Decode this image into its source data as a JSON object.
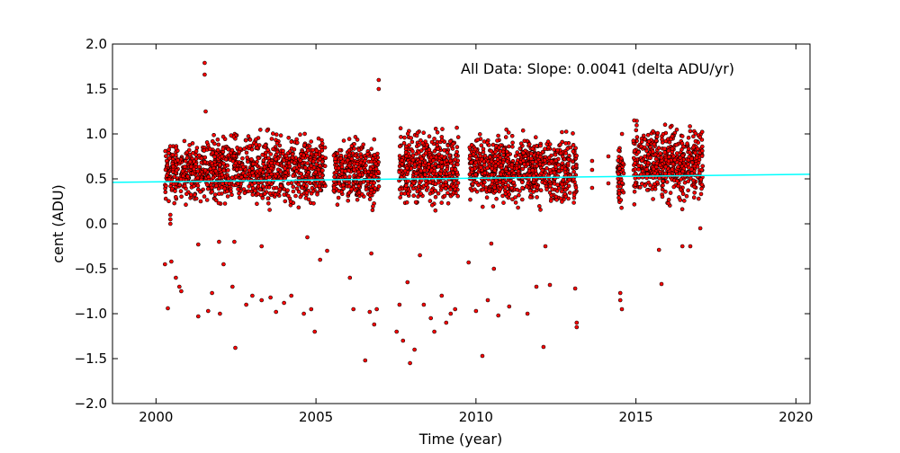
{
  "chart_data": {
    "type": "scatter",
    "title": "",
    "annotation": "All Data: Slope:  0.0041 (delta ADU/yr)",
    "xlabel": "Time (year)",
    "ylabel": "cent (ADU)",
    "xlim": [
      1998.64,
      2020.44
    ],
    "ylim": [
      -2.0,
      2.0
    ],
    "xticks": [
      2000,
      2005,
      2010,
      2015,
      2020
    ],
    "xtick_labels": [
      "2000",
      "2005",
      "2010",
      "2015",
      "2020"
    ],
    "yticks": [
      -2.0,
      -1.5,
      -1.0,
      -0.5,
      0.0,
      0.5,
      1.0,
      1.5,
      2.0
    ],
    "ytick_labels": [
      "−2.0",
      "−1.5",
      "−1.0",
      "−0.5",
      "0.0",
      "0.5",
      "1.0",
      "1.5",
      "2.0"
    ],
    "grid": false,
    "point_color": "#ff0000",
    "point_edge_color": "#000000",
    "fit_line": {
      "color": "#00ffff",
      "slope": 0.0041,
      "x": [
        1998.64,
        2020.44
      ],
      "y": [
        0.461,
        0.551
      ]
    },
    "dense_bands": [
      {
        "x_range": [
          2000.28,
          2001.5
        ],
        "y_range": [
          0.2,
          0.95
        ],
        "count": 260
      },
      {
        "x_range": [
          2001.5,
          2005.3
        ],
        "y_range": [
          0.15,
          1.05
        ],
        "count": 850
      },
      {
        "x_range": [
          2005.55,
          2006.98
        ],
        "y_range": [
          0.15,
          1.0
        ],
        "count": 330
      },
      {
        "x_range": [
          2007.6,
          2009.45
        ],
        "y_range": [
          0.15,
          1.1
        ],
        "count": 450
      },
      {
        "x_range": [
          2009.8,
          2013.15
        ],
        "y_range": [
          0.15,
          1.05
        ],
        "count": 760
      },
      {
        "x_range": [
          2014.42,
          2014.62
        ],
        "y_range": [
          0.1,
          1.0
        ],
        "count": 60
      },
      {
        "x_range": [
          2014.92,
          2017.1
        ],
        "y_range": [
          0.2,
          1.15
        ],
        "count": 520
      }
    ],
    "outliers": [
      [
        2000.28,
        -0.45
      ],
      [
        2000.37,
        -0.94
      ],
      [
        2000.48,
        -0.42
      ],
      [
        2000.62,
        -0.6
      ],
      [
        2000.73,
        -0.7
      ],
      [
        2000.79,
        -0.75
      ],
      [
        2001.32,
        -1.03
      ],
      [
        2001.63,
        -0.97
      ],
      [
        2001.75,
        -0.77
      ],
      [
        2002.0,
        -1.0
      ],
      [
        2002.11,
        -0.45
      ],
      [
        2002.39,
        -0.7
      ],
      [
        2002.48,
        -1.38
      ],
      [
        2002.82,
        -0.9
      ],
      [
        2003.01,
        -0.8
      ],
      [
        2003.3,
        -0.85
      ],
      [
        2003.58,
        -0.82
      ],
      [
        2003.75,
        -0.98
      ],
      [
        2004.0,
        -0.88
      ],
      [
        2004.23,
        -0.8
      ],
      [
        2004.62,
        -1.0
      ],
      [
        2004.85,
        -0.95
      ],
      [
        2004.96,
        -1.2
      ],
      [
        2005.13,
        -0.4
      ],
      [
        2001.32,
        -0.23
      ],
      [
        2001.97,
        -0.2
      ],
      [
        2002.45,
        -0.2
      ],
      [
        2003.3,
        -0.25
      ],
      [
        2004.73,
        -0.15
      ],
      [
        2005.35,
        -0.3
      ],
      [
        2006.06,
        -0.6
      ],
      [
        2006.17,
        -0.95
      ],
      [
        2006.54,
        -1.52
      ],
      [
        2006.68,
        -0.98
      ],
      [
        2006.73,
        -0.33
      ],
      [
        2006.82,
        -1.12
      ],
      [
        2006.9,
        -0.95
      ],
      [
        2007.52,
        -1.2
      ],
      [
        2007.61,
        -0.9
      ],
      [
        2007.72,
        -1.3
      ],
      [
        2007.86,
        -0.65
      ],
      [
        2007.94,
        -1.55
      ],
      [
        2008.08,
        -1.4
      ],
      [
        2008.25,
        -0.35
      ],
      [
        2008.37,
        -0.9
      ],
      [
        2008.59,
        -1.05
      ],
      [
        2008.7,
        -1.2
      ],
      [
        2008.93,
        -0.8
      ],
      [
        2009.07,
        -1.1
      ],
      [
        2009.21,
        -1.0
      ],
      [
        2009.35,
        -0.95
      ],
      [
        2009.77,
        -0.43
      ],
      [
        2010.0,
        -0.97
      ],
      [
        2010.2,
        -1.47
      ],
      [
        2010.37,
        -0.85
      ],
      [
        2010.48,
        -0.22
      ],
      [
        2010.56,
        -0.5
      ],
      [
        2010.7,
        -1.02
      ],
      [
        2011.04,
        -0.92
      ],
      [
        2011.61,
        -1.0
      ],
      [
        2011.89,
        -0.7
      ],
      [
        2012.11,
        -1.37
      ],
      [
        2012.17,
        -0.25
      ],
      [
        2012.31,
        -0.68
      ],
      [
        2013.1,
        -0.72
      ],
      [
        2013.15,
        -1.1
      ],
      [
        2013.15,
        -1.15
      ],
      [
        2014.51,
        -0.77
      ],
      [
        2014.51,
        -0.85
      ],
      [
        2014.56,
        -0.95
      ],
      [
        2015.8,
        -0.67
      ],
      [
        2015.72,
        -0.29
      ],
      [
        2016.45,
        -0.25
      ],
      [
        2016.7,
        -0.25
      ],
      [
        2017.01,
        -0.05
      ],
      [
        2001.52,
        1.79
      ],
      [
        2001.52,
        1.66
      ],
      [
        2006.96,
        1.6
      ],
      [
        2006.96,
        1.5
      ],
      [
        2001.55,
        1.25
      ],
      [
        2013.63,
        0.7
      ],
      [
        2013.63,
        0.6
      ],
      [
        2013.63,
        0.4
      ],
      [
        2014.14,
        0.75
      ],
      [
        2014.14,
        0.45
      ],
      [
        2000.45,
        0.05
      ],
      [
        2000.45,
        0.1
      ],
      [
        2000.45,
        0.0
      ]
    ]
  }
}
